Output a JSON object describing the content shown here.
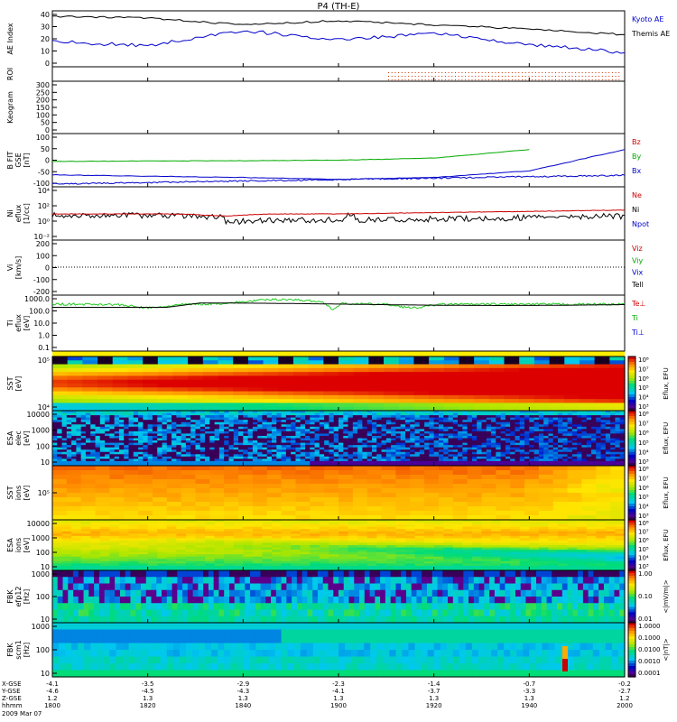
{
  "title": "P4 (TH-E)",
  "footer": {
    "date": "2009 Mar 07"
  },
  "panels": [
    {
      "id": "ae",
      "ylabel": [
        "AE Index"
      ],
      "ticks": [
        "40",
        "30",
        "20",
        "10",
        "0"
      ],
      "legend": [
        {
          "text": "Kyoto AE",
          "color": "#0000cc"
        },
        {
          "text": "Themis AE",
          "color": "#000000"
        }
      ]
    },
    {
      "id": "roi",
      "ylabel": [
        "ROI"
      ],
      "ticks": [],
      "legend": []
    },
    {
      "id": "keogram",
      "ylabel": [
        "Keogram"
      ],
      "ticks": [
        "300",
        "250",
        "200",
        "150",
        "100",
        "50",
        "0"
      ],
      "legend": []
    },
    {
      "id": "bfield",
      "ylabel": [
        "B FIT",
        "GSE",
        "[nT]"
      ],
      "ticks": [
        "100",
        "50",
        "0",
        "-50",
        "-100"
      ],
      "legend": [
        {
          "text": "Bz",
          "color": "#cc0000"
        },
        {
          "text": "By",
          "color": "#00aa00"
        },
        {
          "text": "Bx",
          "color": "#0000cc"
        }
      ]
    },
    {
      "id": "density",
      "ylabel": [
        "Ni",
        "eflux",
        "[1/cc]"
      ],
      "ticks": [
        "10⁴",
        "10²",
        "10⁰",
        "10⁻²"
      ],
      "legend": [
        {
          "text": "Ne",
          "color": "#cc0000"
        },
        {
          "text": "Ni",
          "color": "#000000"
        },
        {
          "text": "Npot",
          "color": "#0000cc"
        }
      ]
    },
    {
      "id": "velocity",
      "ylabel": [
        "Vi",
        "[km/s]"
      ],
      "ticks": [
        "200",
        "100",
        "0",
        "-100",
        "-200"
      ],
      "legend": [
        {
          "text": "Viz",
          "color": "#cc0000"
        },
        {
          "text": "Viy",
          "color": "#00aa00"
        },
        {
          "text": "Vix",
          "color": "#0000cc"
        },
        {
          "text": "Tell",
          "color": "#000000"
        }
      ]
    },
    {
      "id": "temperature",
      "ylabel": [
        "Ti",
        "eflux",
        "[eV]"
      ],
      "ticks": [
        "1000.0",
        "100.0",
        "10.0",
        "1.0",
        "0.1"
      ],
      "legend": [
        {
          "text": "Te⊥",
          "color": "#cc0000"
        },
        {
          "text": "Ti",
          "color": "#00aa00"
        },
        {
          "text": "Ti⊥",
          "color": "#0000cc"
        }
      ]
    },
    {
      "id": "sst_e",
      "ylabel": [
        "SST",
        "[eV]"
      ],
      "ticks": [
        "10⁵",
        "10⁴"
      ],
      "legend": []
    },
    {
      "id": "esa_e",
      "ylabel": [
        "ESA",
        "elec",
        "[eV]"
      ],
      "ticks": [
        "10000",
        "1000",
        "100",
        "10"
      ],
      "legend": []
    },
    {
      "id": "sst_i",
      "ylabel": [
        "SST",
        "ions",
        "[eV]"
      ],
      "ticks": [
        "10⁵"
      ],
      "legend": []
    },
    {
      "id": "esa_i",
      "ylabel": [
        "ESA",
        "ions",
        "[eV]"
      ],
      "ticks": [
        "10000",
        "1000",
        "100",
        "10"
      ],
      "legend": []
    },
    {
      "id": "fbk1",
      "ylabel": [
        "FBK",
        "efp12",
        "[Hz]"
      ],
      "ticks": [
        "1000",
        "100",
        "10"
      ],
      "legend": []
    },
    {
      "id": "fbk2",
      "ylabel": [
        "FBK",
        "scm1",
        "[Hz]"
      ],
      "ticks": [
        "1000",
        "100",
        "10"
      ],
      "legend": []
    }
  ],
  "colorbars": [
    {
      "id": "cb1",
      "label": "Eflux, EFU",
      "ticks": [
        "10⁸",
        "10⁷",
        "10⁶",
        "10⁵",
        "10⁴",
        "10³"
      ]
    },
    {
      "id": "cb2",
      "label": "Eflux, EFU",
      "ticks": [
        "10⁸",
        "10⁷",
        "10⁶",
        "10⁵",
        "10⁴",
        "10³"
      ]
    },
    {
      "id": "cb3",
      "label": "Eflux, EFU",
      "ticks": [
        "10⁸",
        "10⁷",
        "10⁶",
        "10⁵",
        "10⁴",
        "10³"
      ]
    },
    {
      "id": "cb4",
      "label": "Eflux, EFU",
      "ticks": [
        "10⁸",
        "10⁷",
        "10⁶",
        "10⁵",
        "10⁴",
        "10³"
      ]
    },
    {
      "id": "cb5",
      "label": "<|mV/m|>",
      "ticks": [
        "1.00",
        "0.10",
        "0.01"
      ]
    },
    {
      "id": "cb6",
      "label": "<|nT|>",
      "ticks": [
        "1.0000",
        "0.1000",
        "0.0100",
        "0.0010",
        "0.0001"
      ]
    }
  ],
  "xaxis": {
    "row_labels": [
      "X-GSE",
      "Y-GSE",
      "Z-GSE",
      "hhmm"
    ],
    "columns": [
      {
        "x": "-4.1",
        "y": "-4.6",
        "z": "1.2",
        "t": "1800"
      },
      {
        "x": "-3.5",
        "y": "-4.5",
        "z": "1.3",
        "t": "1820"
      },
      {
        "x": "-2.9",
        "y": "-4.3",
        "z": "1.3",
        "t": "1840"
      },
      {
        "x": "-2.3",
        "y": "-4.1",
        "z": "1.3",
        "t": "1900"
      },
      {
        "x": "-1.4",
        "y": "-3.7",
        "z": "1.3",
        "t": "1920"
      },
      {
        "x": "-0.7",
        "y": "-3.3",
        "z": "1.3",
        "t": "1940"
      },
      {
        "x": "-0.2",
        "y": "-2.7",
        "z": "1.2",
        "t": "2000"
      }
    ]
  },
  "chart_data": {
    "type": "line",
    "title": "P4 (TH-E)",
    "x": [
      "1800",
      "1820",
      "1840",
      "1900",
      "1920",
      "1940",
      "2000"
    ],
    "xlabel": "hhmm",
    "series": [
      {
        "name": "Kyoto AE",
        "panel": "AE Index",
        "values": [
          18,
          15,
          26,
          19,
          24,
          16,
          10
        ]
      },
      {
        "name": "Themis AE",
        "panel": "AE Index",
        "values": [
          36,
          35,
          30,
          33,
          30,
          27,
          23
        ]
      },
      {
        "name": "Bz",
        "panel": "B FIT GSE [nT]",
        "values": [
          null,
          null,
          null,
          null,
          null,
          null,
          null
        ]
      },
      {
        "name": "By",
        "panel": "B FIT GSE [nT]",
        "values": [
          -5,
          -3,
          -2,
          0,
          8,
          40,
          null
        ]
      },
      {
        "name": "Bx",
        "panel": "B FIT GSE [nT]",
        "values": [
          -55,
          -60,
          -65,
          -72,
          -65,
          -40,
          40
        ]
      }
    ],
    "ylim_ae": [
      0,
      40
    ],
    "ylim_bfield": [
      -100,
      100
    ]
  }
}
